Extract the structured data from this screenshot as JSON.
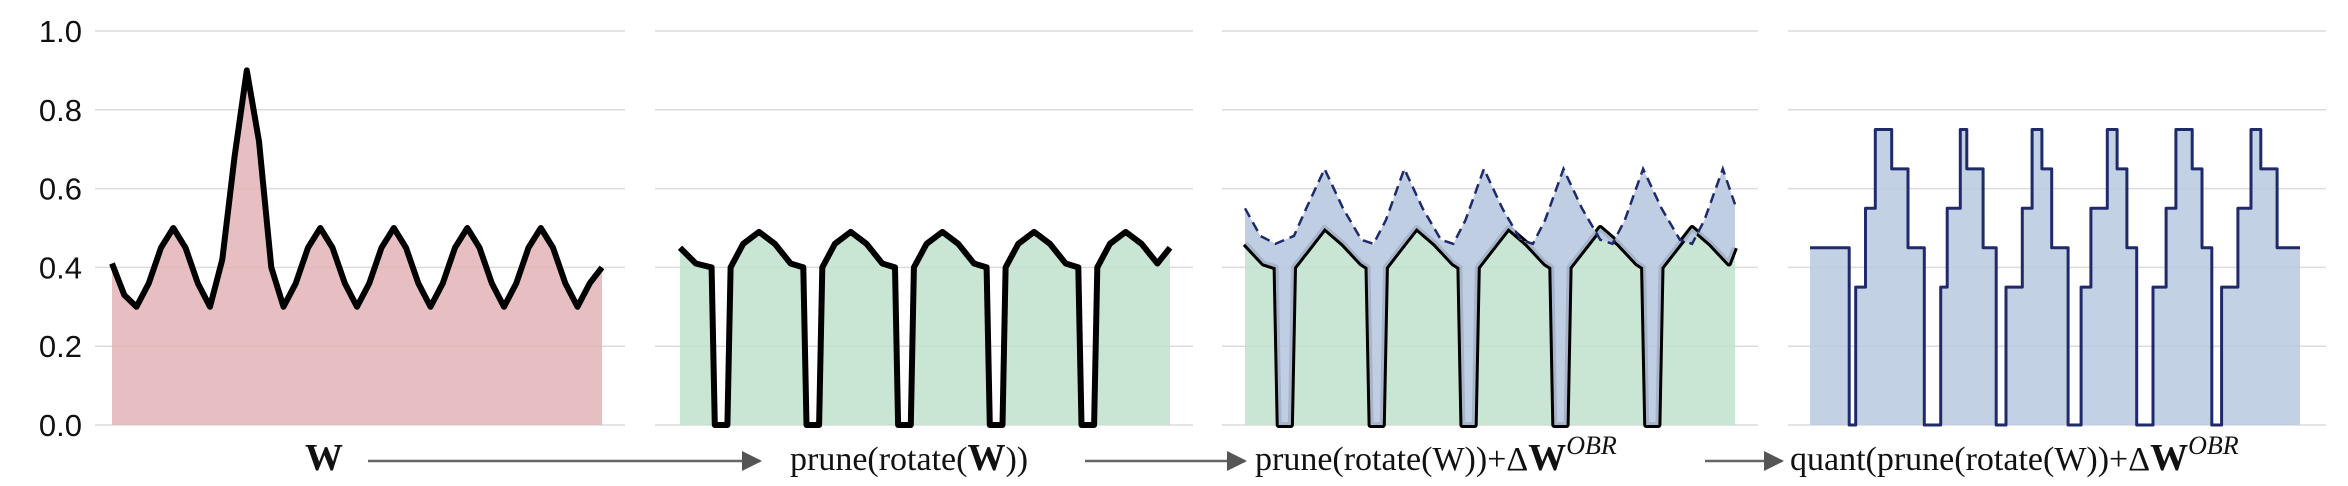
{
  "chart_data": {
    "type": "area",
    "ylim": [
      0,
      1.0
    ],
    "y_ticks": [
      "0.0",
      "0.2",
      "0.4",
      "0.6",
      "0.8",
      "1.0"
    ],
    "grid": "horizontal",
    "panels": [
      {
        "caption": "W",
        "fill_color": "#e3b3b6",
        "series": [
          {
            "x": [
              0,
              0.25,
              0.5,
              0.75,
              1,
              1.25,
              1.5,
              1.75,
              2,
              2.25,
              2.5,
              2.75,
              3,
              3.25,
              3.5,
              3.75,
              4,
              4.25,
              4.5,
              4.75,
              5,
              5.25,
              5.5,
              5.75,
              6,
              6.25,
              6.5,
              6.75,
              7,
              7.25,
              7.5,
              7.75,
              8,
              8.25,
              8.5,
              8.75,
              9,
              9.25,
              9.5,
              9.75,
              10
            ],
            "y": [
              0.41,
              0.33,
              0.3,
              0.36,
              0.45,
              0.5,
              0.45,
              0.36,
              0.3,
              0.42,
              0.68,
              0.9,
              0.72,
              0.4,
              0.3,
              0.36,
              0.45,
              0.5,
              0.45,
              0.36,
              0.3,
              0.36,
              0.45,
              0.5,
              0.45,
              0.36,
              0.3,
              0.36,
              0.45,
              0.5,
              0.45,
              0.36,
              0.3,
              0.36,
              0.45,
              0.5,
              0.45,
              0.36,
              0.3,
              0.36,
              0.4
            ]
          }
        ]
      },
      {
        "caption": "prune(rotate(W))",
        "caption_bold": "W",
        "fill_color": "#bfe0cb",
        "series": [
          {
            "x": [
              0,
              0.25,
              0.5,
              0.55,
              0.75,
              0.8,
              1.0,
              1.25,
              1.5,
              1.75,
              1.95,
              2.0,
              2.2,
              2.25,
              2.45,
              2.7,
              2.95,
              3.2,
              3.4,
              3.45,
              3.65,
              3.7,
              3.9,
              4.15,
              4.4,
              4.65,
              4.85,
              4.9,
              5.1,
              5.15,
              5.35,
              5.6,
              5.85,
              6.1,
              6.3,
              6.35,
              6.55,
              6.6,
              6.8,
              7.05,
              7.3,
              7.55,
              7.75
            ],
            "y": [
              0.45,
              0.41,
              0.4,
              0.0,
              0.0,
              0.4,
              0.46,
              0.49,
              0.46,
              0.41,
              0.4,
              0.0,
              0.0,
              0.4,
              0.46,
              0.49,
              0.46,
              0.41,
              0.4,
              0.0,
              0.0,
              0.4,
              0.46,
              0.49,
              0.46,
              0.41,
              0.4,
              0.0,
              0.0,
              0.4,
              0.46,
              0.49,
              0.46,
              0.41,
              0.4,
              0.0,
              0.0,
              0.4,
              0.46,
              0.49,
              0.46,
              0.41,
              0.45
            ]
          }
        ]
      },
      {
        "caption": "prune(rotate(W))+ΔW",
        "caption_bold": "W",
        "caption_sup": "OBR",
        "fill_color": "#bfe0cb",
        "overlay_color": "#b8c9e0",
        "series": [
          {
            "x": [
              0,
              0.3,
              0.5,
              0.55,
              0.75,
              0.8,
              1.0,
              1.3,
              1.6,
              1.9,
              2.0,
              2.05,
              2.25,
              2.3,
              2.5,
              2.8,
              3.1,
              3.4,
              3.5,
              3.55,
              3.75,
              3.8,
              4.0,
              4.3,
              4.6,
              4.9,
              5.0,
              5.05,
              5.25,
              5.3,
              5.5,
              5.8,
              6.1,
              6.4,
              6.5,
              6.55,
              6.75,
              6.8,
              7.0,
              7.3,
              7.6,
              7.9,
              8.0
            ],
            "y": [
              0.46,
              0.41,
              0.4,
              0.0,
              0.0,
              0.4,
              0.44,
              0.5,
              0.46,
              0.41,
              0.4,
              0.0,
              0.0,
              0.4,
              0.44,
              0.5,
              0.46,
              0.41,
              0.4,
              0.0,
              0.0,
              0.4,
              0.44,
              0.5,
              0.46,
              0.41,
              0.4,
              0.0,
              0.0,
              0.4,
              0.44,
              0.5,
              0.46,
              0.41,
              0.4,
              0.0,
              0.0,
              0.4,
              0.44,
              0.5,
              0.46,
              0.41,
              0.45
            ]
          },
          {
            "style": "dashed",
            "x": [
              0,
              0.25,
              0.5,
              0.8,
              1.0,
              1.3,
              1.6,
              1.9,
              2.1,
              2.3,
              2.6,
              2.9,
              3.2,
              3.4,
              3.6,
              3.9,
              4.2,
              4.5,
              4.7,
              4.9,
              5.2,
              5.5,
              5.8,
              6.0,
              6.2,
              6.5,
              6.8,
              7.1,
              7.3,
              7.5,
              7.8,
              8.0
            ],
            "y": [
              0.55,
              0.48,
              0.46,
              0.48,
              0.55,
              0.65,
              0.55,
              0.47,
              0.46,
              0.52,
              0.65,
              0.55,
              0.47,
              0.46,
              0.52,
              0.65,
              0.55,
              0.47,
              0.46,
              0.52,
              0.65,
              0.55,
              0.47,
              0.46,
              0.52,
              0.65,
              0.55,
              0.47,
              0.46,
              0.52,
              0.65,
              0.56
            ]
          }
        ]
      },
      {
        "caption": "quant(prune(rotate(W))+ΔW",
        "caption_bold": "W",
        "caption_sup": "OBR",
        "fill_color": "#b8c9e0",
        "line_color": "#1f2a6b",
        "series": [
          {
            "step": true,
            "x": [
              0,
              0.6,
              0.6,
              0.7,
              0.7,
              0.85,
              0.85,
              1.0,
              1.0,
              1.25,
              1.25,
              1.5,
              1.5,
              1.75,
              1.75,
              2.0,
              2.0,
              2.1,
              2.1,
              2.3,
              2.3,
              2.4,
              2.4,
              2.65,
              2.65,
              2.85,
              2.85,
              3.0,
              3.0,
              3.25,
              3.25,
              3.4,
              3.4,
              3.55,
              3.55,
              3.7,
              3.7,
              3.95,
              3.95,
              4.15,
              4.15,
              4.3,
              4.3,
              4.55,
              4.55,
              4.7,
              4.7,
              4.85,
              4.85,
              5.0,
              5.0,
              5.25,
              5.25,
              5.45,
              5.45,
              5.6,
              5.6,
              5.85,
              5.85,
              6.0,
              6.0,
              6.15,
              6.15,
              6.3,
              6.3,
              6.55,
              6.55,
              6.75,
              6.75,
              6.9,
              6.9,
              7.15,
              7.15,
              7.4,
              7.4,
              7.5
            ],
            "y": [
              0.45,
              0.45,
              0.0,
              0.0,
              0.35,
              0.35,
              0.55,
              0.55,
              0.75,
              0.75,
              0.65,
              0.65,
              0.45,
              0.45,
              0.0,
              0.0,
              0.35,
              0.35,
              0.55,
              0.55,
              0.75,
              0.75,
              0.65,
              0.65,
              0.45,
              0.45,
              0.0,
              0.0,
              0.35,
              0.35,
              0.55,
              0.55,
              0.75,
              0.75,
              0.65,
              0.65,
              0.45,
              0.45,
              0.0,
              0.0,
              0.35,
              0.35,
              0.55,
              0.55,
              0.75,
              0.75,
              0.65,
              0.65,
              0.45,
              0.45,
              0.0,
              0.0,
              0.35,
              0.35,
              0.55,
              0.55,
              0.75,
              0.75,
              0.65,
              0.65,
              0.45,
              0.45,
              0.0,
              0.0,
              0.35,
              0.35,
              0.55,
              0.55,
              0.75,
              0.75,
              0.65,
              0.65,
              0.45,
              0.45,
              0.45,
              0.45
            ]
          }
        ]
      }
    ]
  }
}
